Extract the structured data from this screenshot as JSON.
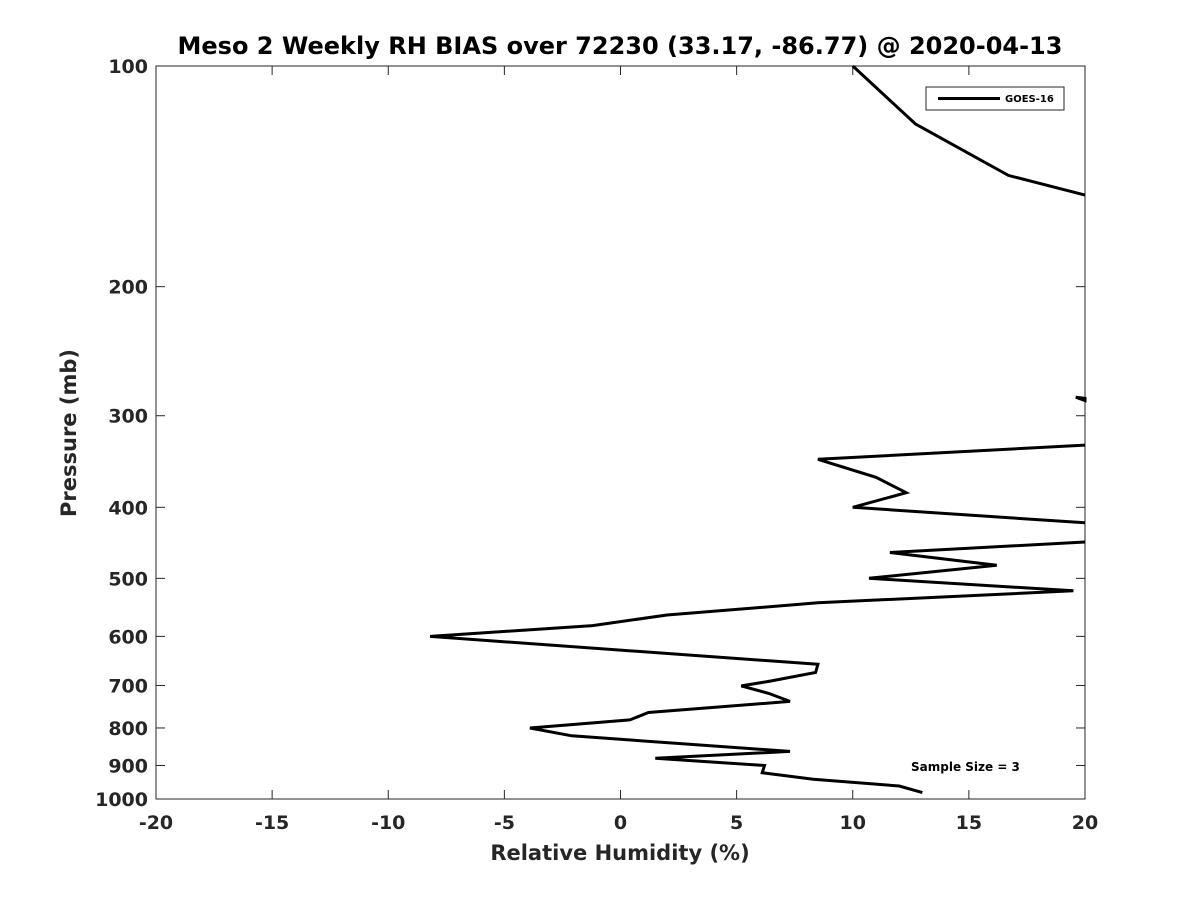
{
  "chart_data": {
    "type": "line",
    "title": "Meso 2 Weekly RH BIAS over 72230 (33.17, -86.77) @ 2020-04-13",
    "xlabel": "Relative Humidity (%)",
    "ylabel": "Pressure (mb)",
    "xlim": [
      -20,
      20
    ],
    "ylim": [
      100,
      1000
    ],
    "yscale": "log",
    "y_reversed": true,
    "x_ticks": [
      -20,
      -15,
      -10,
      -5,
      0,
      5,
      10,
      15,
      20
    ],
    "x_tick_labels": [
      "-20",
      "-15",
      "-10",
      "-5",
      "0",
      "5",
      "10",
      "15",
      "20"
    ],
    "y_ticks": [
      100,
      200,
      300,
      400,
      500,
      600,
      700,
      800,
      900,
      1000
    ],
    "y_tick_labels": [
      "100",
      "200",
      "300",
      "400",
      "500",
      "600",
      "700",
      "800",
      "900",
      "1000"
    ],
    "grid": false,
    "legend": {
      "position": "top-right",
      "entries": [
        "GOES-16"
      ]
    },
    "annotation": "Sample Size = 3",
    "series": [
      {
        "name": "GOES-16",
        "color": "#000000",
        "segments": [
          [
            {
              "x": 10.0,
              "y": 100
            },
            {
              "x": 12.7,
              "y": 120
            },
            {
              "x": 16.7,
              "y": 141
            },
            {
              "x": 20.0,
              "y": 150
            }
          ],
          [
            {
              "x": 19.6,
              "y": 283
            },
            {
              "x": 20.0,
              "y": 286
            },
            {
              "x": 20.0,
              "y": 284
            },
            {
              "x": 19.6,
              "y": 283
            }
          ],
          [
            {
              "x": 20.0,
              "y": 329
            },
            {
              "x": 8.5,
              "y": 344
            },
            {
              "x": 11.0,
              "y": 364
            },
            {
              "x": 12.3,
              "y": 382
            },
            {
              "x": 10.0,
              "y": 400
            },
            {
              "x": 20.0,
              "y": 420
            }
          ],
          [
            {
              "x": 20.0,
              "y": 446
            },
            {
              "x": 11.6,
              "y": 461
            },
            {
              "x": 16.2,
              "y": 480
            },
            {
              "x": 10.7,
              "y": 500
            },
            {
              "x": 19.5,
              "y": 520
            },
            {
              "x": 8.5,
              "y": 540
            },
            {
              "x": 2.0,
              "y": 561
            },
            {
              "x": -1.2,
              "y": 580
            },
            {
              "x": -8.2,
              "y": 600
            },
            {
              "x": 8.5,
              "y": 655
            },
            {
              "x": 8.4,
              "y": 672
            },
            {
              "x": 6.5,
              "y": 690
            },
            {
              "x": 5.2,
              "y": 701
            },
            {
              "x": 6.4,
              "y": 718
            },
            {
              "x": 7.3,
              "y": 736
            },
            {
              "x": 1.2,
              "y": 762
            },
            {
              "x": 0.4,
              "y": 780
            },
            {
              "x": -3.9,
              "y": 800
            },
            {
              "x": -2.1,
              "y": 820
            },
            {
              "x": 7.3,
              "y": 861
            },
            {
              "x": 1.5,
              "y": 880
            },
            {
              "x": 6.2,
              "y": 900
            },
            {
              "x": 6.1,
              "y": 921
            },
            {
              "x": 8.3,
              "y": 940
            },
            {
              "x": 12.0,
              "y": 960
            },
            {
              "x": 13.0,
              "y": 980
            }
          ]
        ]
      }
    ]
  }
}
